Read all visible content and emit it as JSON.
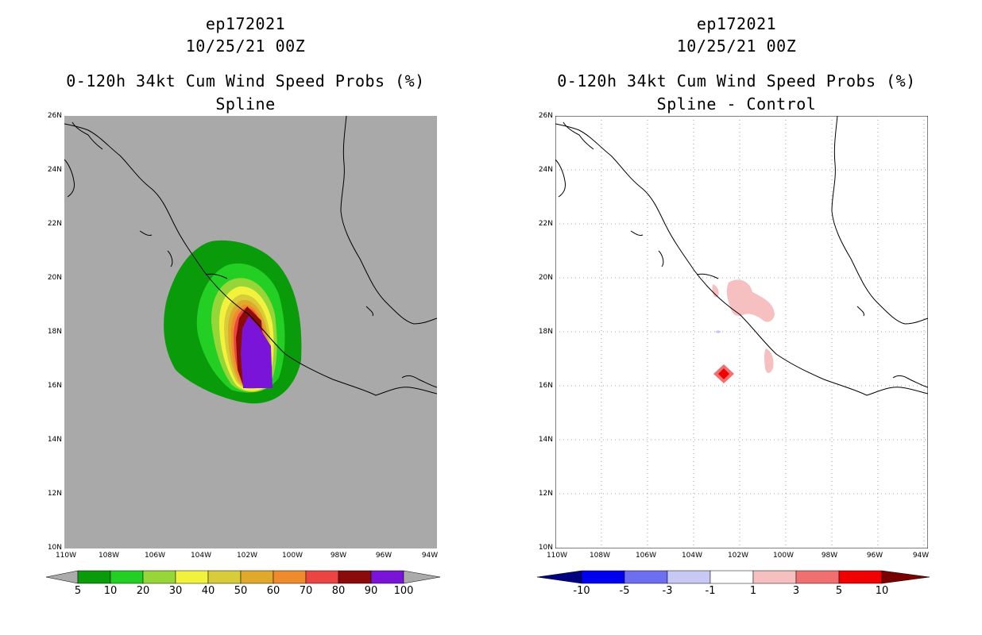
{
  "left": {
    "storm_id": "ep172021",
    "datetime": "10/25/21 00Z",
    "title": "0-120h 34kt Cum Wind Speed Probs (%)",
    "subtitle": "Spline",
    "background_color": "#a9a9a9",
    "y_ticks": [
      "26N",
      "24N",
      "22N",
      "20N",
      "18N",
      "16N",
      "14N",
      "12N",
      "10N"
    ],
    "x_ticks": [
      "110W",
      "108W",
      "106W",
      "104W",
      "102W",
      "100W",
      "98W",
      "96W",
      "94W"
    ],
    "legend": {
      "labels": [
        "5",
        "10",
        "20",
        "30",
        "40",
        "50",
        "60",
        "70",
        "80",
        "90",
        "100"
      ],
      "colors": [
        "#ababab",
        "#0a9b0a",
        "#22cf22",
        "#97d639",
        "#f2f23c",
        "#d9cc3a",
        "#e0a92b",
        "#ef8a2d",
        "#ec4443",
        "#8b0b0b",
        "#7b14d9",
        "#ababab"
      ]
    }
  },
  "right": {
    "storm_id": "ep172021",
    "datetime": "10/25/21 00Z",
    "title": "0-120h 34kt Cum Wind Speed Probs (%)",
    "subtitle": "Spline - Control",
    "background_color": "#ffffff",
    "y_ticks": [
      "26N",
      "24N",
      "22N",
      "20N",
      "18N",
      "16N",
      "14N",
      "12N",
      "10N"
    ],
    "x_ticks": [
      "110W",
      "108W",
      "106W",
      "104W",
      "102W",
      "100W",
      "98W",
      "96W",
      "94W"
    ],
    "legend": {
      "labels": [
        "-10",
        "-5",
        "-3",
        "-1",
        "1",
        "3",
        "5",
        "10"
      ],
      "colors": [
        "#000080",
        "#0000f0",
        "#6e6ef0",
        "#c8c8f5",
        "#ffffff",
        "#f7c0c0",
        "#f07070",
        "#f00000",
        "#7a0000"
      ]
    }
  }
}
